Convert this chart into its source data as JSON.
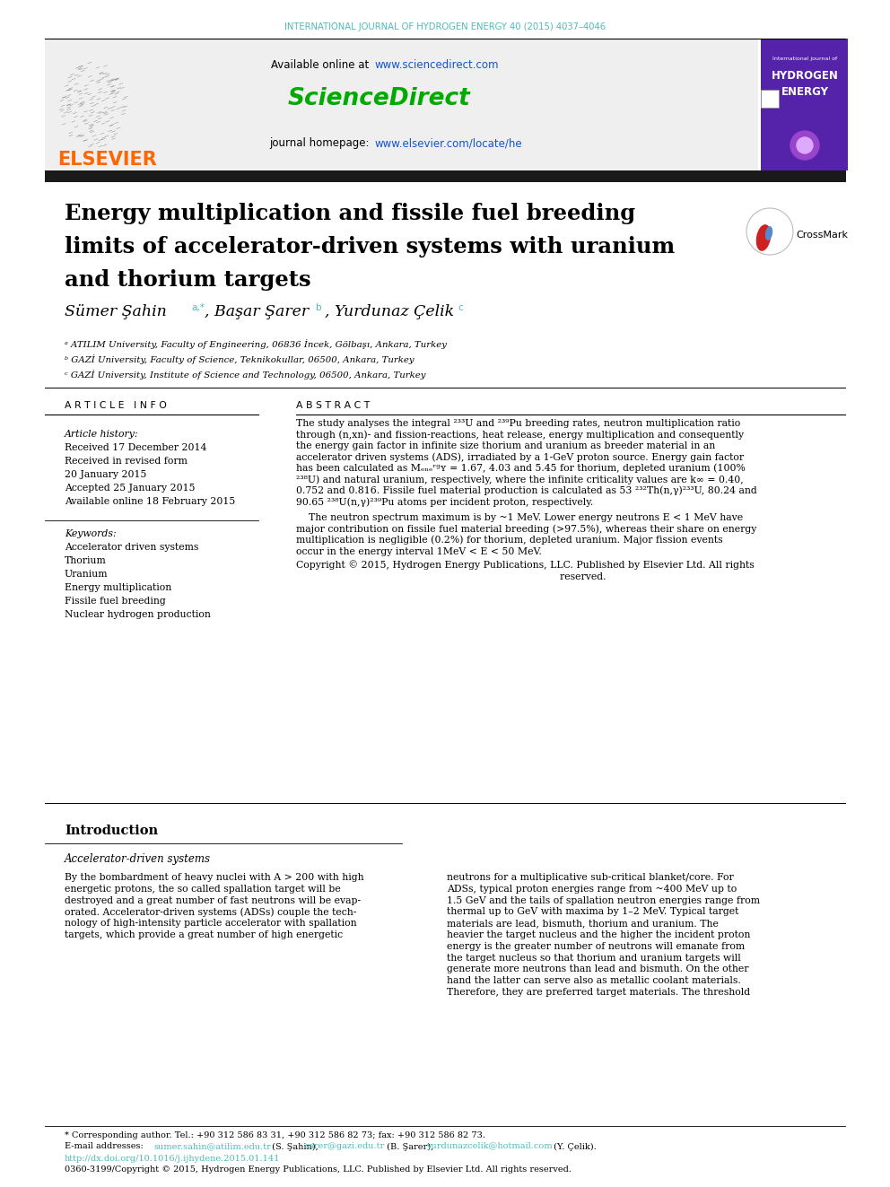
{
  "journal_line": "INTERNATIONAL JOURNAL OF HYDROGEN ENERGY 40 (2015) 4037–4046",
  "sciencedirect_url": "www.sciencedirect.com",
  "sciencedirect_text": "ScienceDirect",
  "journal_homepage": "journal homepage: ",
  "homepage_url": "www.elsevier.com/locate/he",
  "title_line1": "Energy multiplication and fissile fuel breeding",
  "title_line2": "limits of accelerator-driven systems with uranium",
  "title_line3": "and thorium targets",
  "affil_a": "ᵃ ATILIM University, Faculty of Engineering, 06836 İncek, Gölbaşı, Ankara, Turkey",
  "affil_b": "ᵇ GAZİ University, Faculty of Science, Teknikokullar, 06500, Ankara, Turkey",
  "affil_c": "ᶜ GAZİ University, Institute of Science and Technology, 06500, Ankara, Turkey",
  "article_info_header": "A R T I C L E   I N F O",
  "abstract_header": "A B S T R A C T",
  "article_history_label": "Article history:",
  "received_1": "Received 17 December 2014",
  "received_2": "Received in revised form",
  "received_2b": "20 January 2015",
  "accepted": "Accepted 25 January 2015",
  "available_online2": "Available online 18 February 2015",
  "keywords_label": "Keywords:",
  "keywords": [
    "Accelerator driven systems",
    "Thorium",
    "Uranium",
    "Energy multiplication",
    "Fissile fuel breeding",
    "Nuclear hydrogen production"
  ],
  "abs_lines1": [
    "The study analyses the integral ²³³U and ²³⁹Pu breeding rates, neutron multiplication ratio",
    "through (n,xn)- and fission-reactions, heat release, energy multiplication and consequently",
    "the energy gain factor in infinite size thorium and uranium as breeder material in an",
    "accelerator driven systems (ADS), irradiated by a 1-GeV proton source. Energy gain factor",
    "has been calculated as Mₑₙₑʳᵍʏ = 1.67, 4.03 and 5.45 for thorium, depleted uranium (100%",
    "²³⁸U) and natural uranium, respectively, where the infinite criticality values are k∞ = 0.40,",
    "0.752 and 0.816. Fissile fuel material production is calculated as 53 ²³²Th(n,γ)²³³U, 80.24 and",
    "90.65 ²³⁸U(n,γ)²³⁹Pu atoms per incident proton, respectively."
  ],
  "abs_lines2": [
    "    The neutron spectrum maximum is by ~1 MeV. Lower energy neutrons E < 1 MeV have",
    "major contribution on fissile fuel material breeding (>97.5%), whereas their share on energy",
    "multiplication is negligible (0.2%) for thorium, depleted uranium. Major fission events",
    "occur in the energy interval 1MeV < E < 50 MeV."
  ],
  "abs_lines3": [
    "Copyright © 2015, Hydrogen Energy Publications, LLC. Published by Elsevier Ltd. All rights",
    "                                                                                    reserved."
  ],
  "intro_header": "Introduction",
  "intro_subheader": "Accelerator-driven systems",
  "intro_col1_lines": [
    "By the bombardment of heavy nuclei with A > 200 with high",
    "energetic protons, the so called spallation target will be",
    "destroyed and a great number of fast neutrons will be evap-",
    "orated. Accelerator-driven systems (ADSs) couple the tech-",
    "nology of high-intensity particle accelerator with spallation",
    "targets, which provide a great number of high energetic"
  ],
  "intro_col2_lines": [
    "neutrons for a multiplicative sub-critical blanket/core. For",
    "ADSs, typical proton energies range from ~400 MeV up to",
    "1.5 GeV and the tails of spallation neutron energies range from",
    "thermal up to GeV with maxima by 1–2 MeV. Typical target",
    "materials are lead, bismuth, thorium and uranium. The",
    "heavier the target nucleus and the higher the incident proton",
    "energy is the greater number of neutrons will emanate from",
    "the target nucleus so that thorium and uranium targets will",
    "generate more neutrons than lead and bismuth. On the other",
    "hand the latter can serve also as metallic coolant materials.",
    "Therefore, they are preferred target materials. The threshold"
  ],
  "footnote_corresponding": "* Corresponding author. Tel.: +90 312 586 83 31, +90 312 586 82 73; fax: +90 312 586 82 73.",
  "footnote_doi": "http://dx.doi.org/10.1016/j.ijhydene.2015.01.141",
  "footnote_issn": "0360-3199/Copyright © 2015, Hydrogen Energy Publications, LLC. Published by Elsevier Ltd. All rights reserved.",
  "elsevier_color": "#FF6600",
  "teal_color": "#4DBBBB",
  "green_color": "#00AA00",
  "link_color": "#1155CC",
  "dark_bar_color": "#1A1A1A"
}
